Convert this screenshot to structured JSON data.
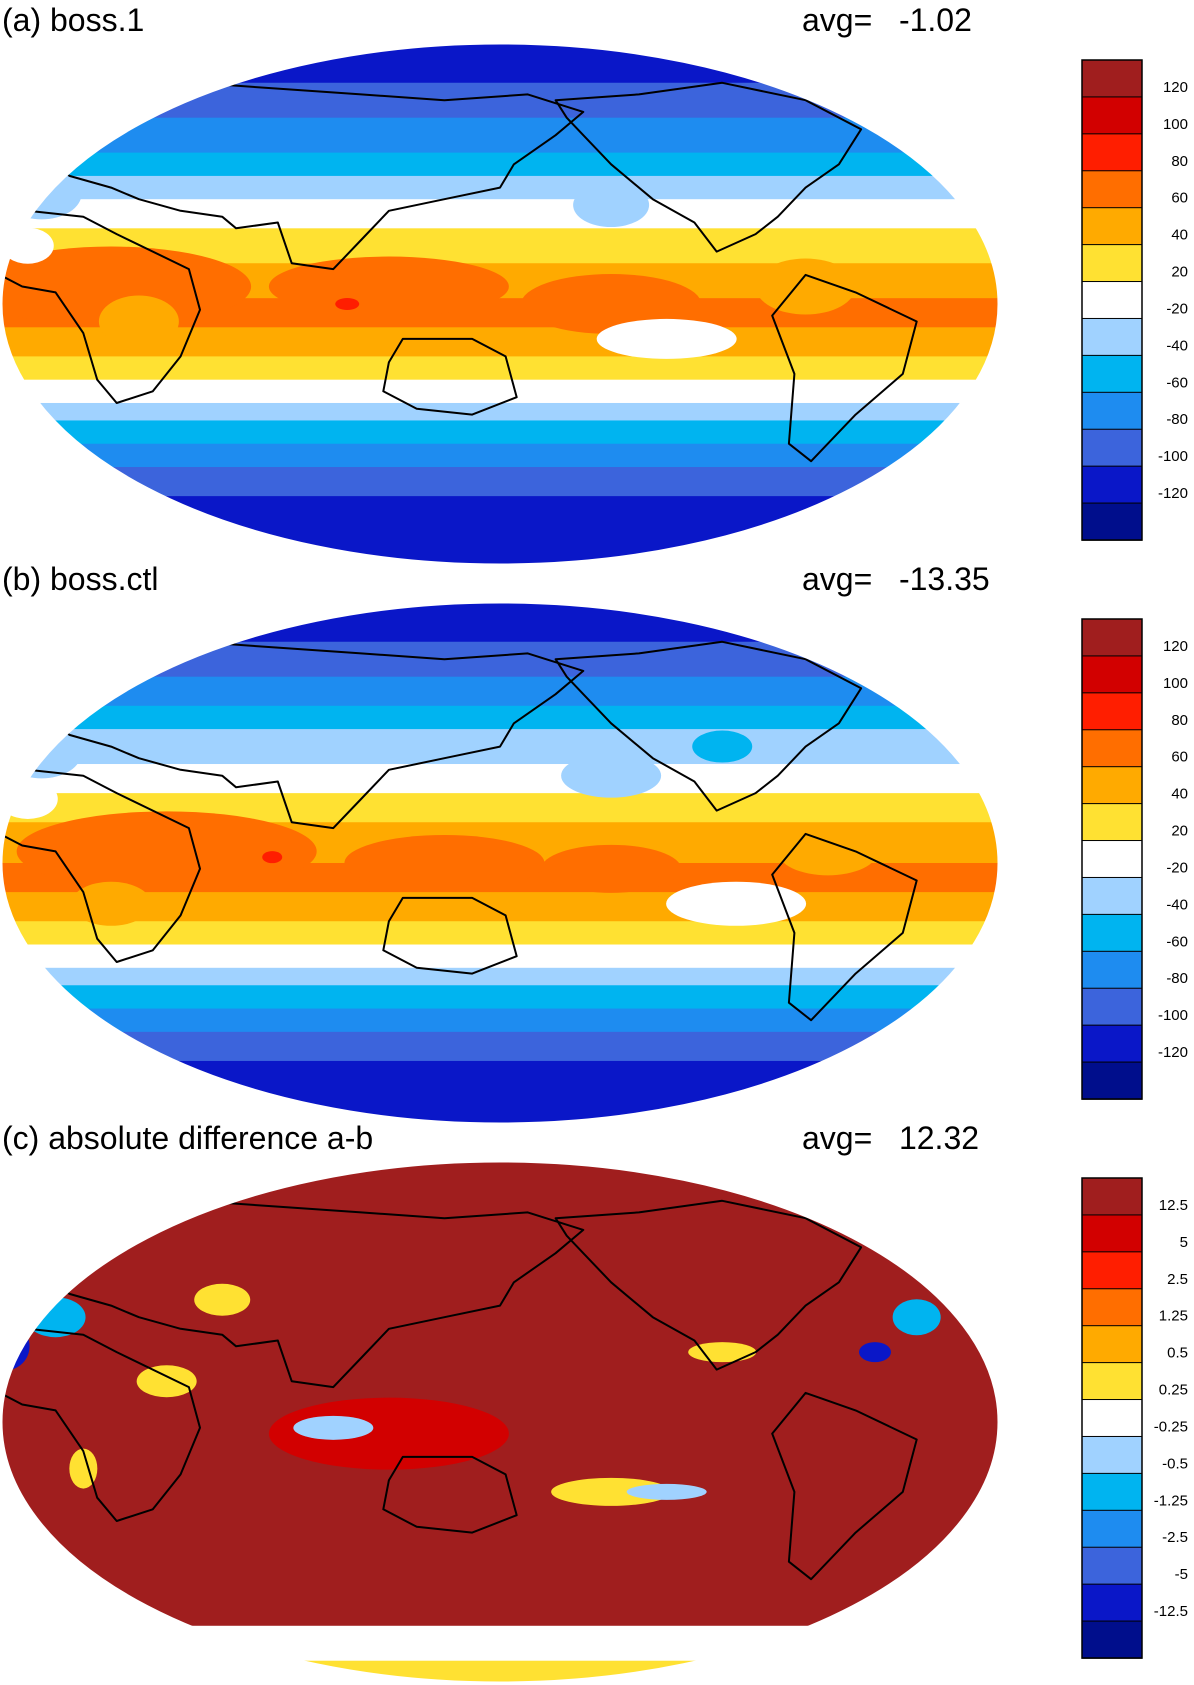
{
  "colors": {
    "scale": [
      "#000e8c",
      "#0a17c8",
      "#3c64dc",
      "#1e8cf0",
      "#00b4f0",
      "#a0d2ff",
      "#ffffff",
      "#ffe132",
      "#ffaa00",
      "#ff6e00",
      "#ff1e00",
      "#d20000",
      "#a01e1e"
    ],
    "land_outline": "#000000"
  },
  "panels": [
    {
      "id": "a",
      "title": "(a) boss.1",
      "avg_label": "avg=",
      "avg_value": "-1.02",
      "map_icon": "world-map-robinson-icon",
      "colorbar": {
        "ticks": [
          "120",
          "100",
          "80",
          "60",
          "40",
          "20",
          "-20",
          "-40",
          "-60",
          "-80",
          "-100",
          "-120"
        ]
      }
    },
    {
      "id": "b",
      "title": "(b) boss.ctl",
      "avg_label": "avg=",
      "avg_value": "-13.35",
      "map_icon": "world-map-robinson-icon",
      "colorbar": {
        "ticks": [
          "120",
          "100",
          "80",
          "60",
          "40",
          "20",
          "-20",
          "-40",
          "-60",
          "-80",
          "-100",
          "-120"
        ]
      }
    },
    {
      "id": "c",
      "title": "(c) absolute difference a-b",
      "avg_label": "avg=",
      "avg_value": "12.32",
      "map_icon": "world-map-robinson-icon",
      "colorbar": {
        "ticks": [
          "12.5",
          "5",
          "2.5",
          "1.25",
          "0.5",
          "0.25",
          "-0.25",
          "-0.5",
          "-1.25",
          "-2.5",
          "-5",
          "-12.5"
        ]
      }
    }
  ]
}
